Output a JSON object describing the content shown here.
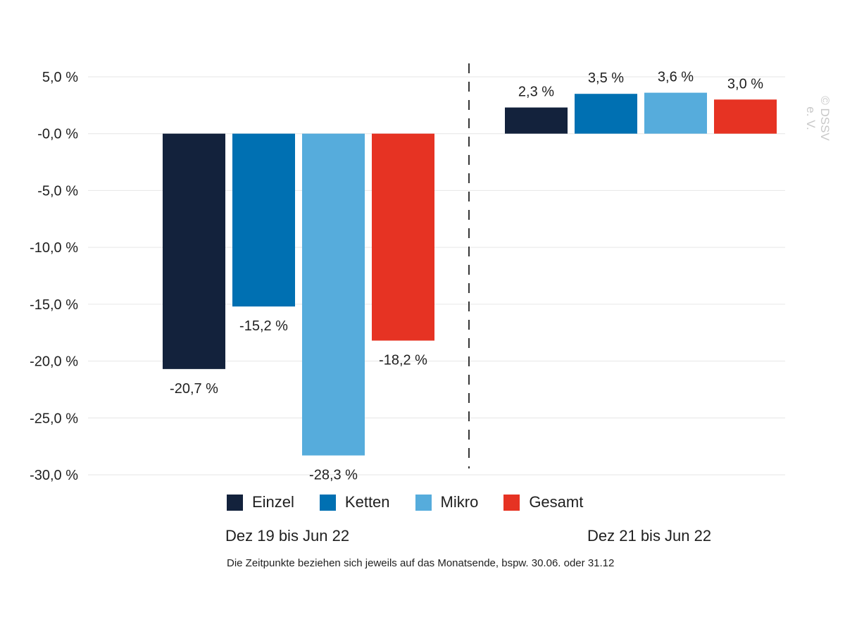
{
  "chart_data": {
    "type": "bar",
    "y_ticks": [
      5,
      0,
      -5,
      -10,
      -15,
      -20,
      -25,
      -30
    ],
    "y_tick_labels": [
      "5,0 %",
      "-0,0 %",
      "-5,0 %",
      "-10,0 %",
      "-15,0 %",
      "-20,0 %",
      "-25,0 %",
      "-30,0 %"
    ],
    "ylim": [
      -30,
      5
    ],
    "grid": true,
    "legend_placement": "bottom",
    "categories": [
      "Dez 19 bis Jun 22",
      "Dez 21 bis Jun 22"
    ],
    "series": [
      {
        "name": "Einzel",
        "color": "#13223c",
        "values": [
          -20.7,
          2.3
        ],
        "labels": [
          "-20,7 %",
          "2,3 %"
        ]
      },
      {
        "name": "Ketten",
        "color": "#0070b2",
        "values": [
          -15.2,
          3.5
        ],
        "labels": [
          "-15,2 %",
          "3,5 %"
        ]
      },
      {
        "name": "Mikro",
        "color": "#56acdc",
        "values": [
          -28.3,
          3.6
        ],
        "labels": [
          "-28,3 %",
          "3,6 %"
        ]
      },
      {
        "name": "Gesamt",
        "color": "#e63323",
        "values": [
          -18.2,
          3.0
        ],
        "labels": [
          "-18,2 %",
          "3,0 %"
        ]
      }
    ],
    "footnote": "Die Zeitpunkte beziehen sich jeweils auf das Monatsende, bspw. 30.06. oder 31.12"
  },
  "watermark": "© DSSV e. V."
}
